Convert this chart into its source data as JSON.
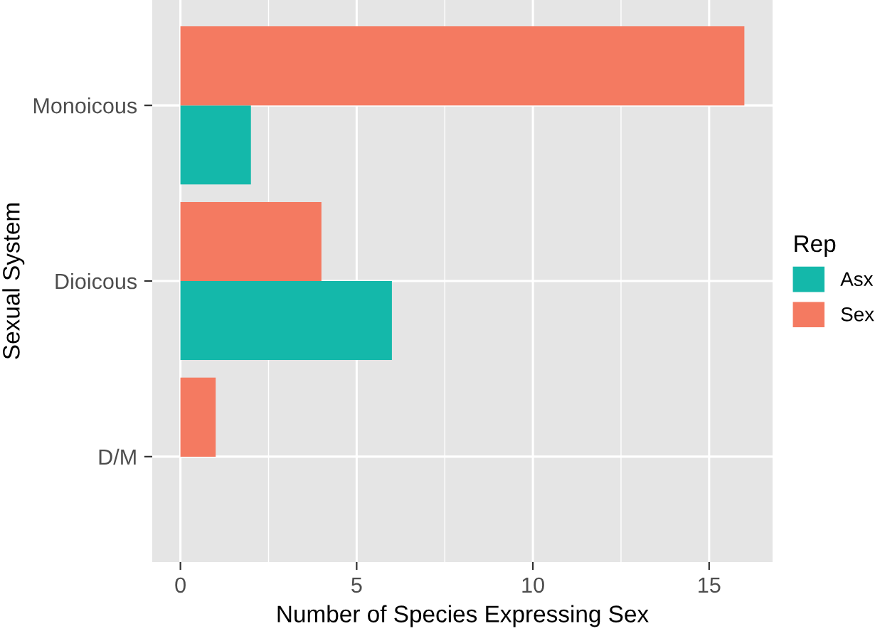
{
  "chart_data": {
    "type": "bar",
    "orientation": "horizontal",
    "xlabel": "Number of Species Expressing Sex",
    "ylabel": "Sexual System",
    "legend_title": "Rep",
    "categories": [
      "Monoicous",
      "Dioicous",
      "D/M"
    ],
    "series": [
      {
        "name": "Asx",
        "color": "#14b8aa",
        "values": [
          2,
          6,
          null
        ]
      },
      {
        "name": "Sex",
        "color": "#f47a61",
        "values": [
          16,
          4,
          1
        ]
      }
    ],
    "xlim": [
      -0.8,
      16.8
    ],
    "xticks": [
      0,
      5,
      10,
      15
    ],
    "grid": true,
    "legend": "right"
  }
}
